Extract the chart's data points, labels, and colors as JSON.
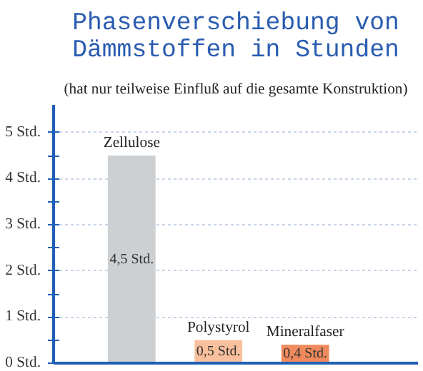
{
  "chart_data": {
    "type": "bar",
    "title": "Phasenverschiebung von Dämmstoffen in Stunden",
    "subtitle": "(hat nur teilweise Einfluß auf die gesamte Konstruktion)",
    "categories": [
      "Zellulose",
      "Polystyrol",
      "Mineralfaser"
    ],
    "values": [
      4.5,
      0.5,
      0.4
    ],
    "colors": [
      "#cdd0d3",
      "#f9c09e",
      "#f08a5c"
    ],
    "value_labels": [
      "4,5 Std.",
      "0,5 Std.",
      "0,4 Std."
    ],
    "ylim": [
      0,
      5.6
    ],
    "yticks": [
      {
        "value": 0,
        "label": "0 Std."
      },
      {
        "value": 0.5,
        "label": null
      },
      {
        "value": 1,
        "label": "1 Std."
      },
      {
        "value": 1.5,
        "label": null
      },
      {
        "value": 2,
        "label": "2 Std."
      },
      {
        "value": 2.5,
        "label": null
      },
      {
        "value": 3,
        "label": "3 Std."
      },
      {
        "value": 3.5,
        "label": null
      },
      {
        "value": 4,
        "label": "4 Std."
      },
      {
        "value": 4.5,
        "label": null
      },
      {
        "value": 5,
        "label": "5 Std."
      }
    ],
    "grid": "y",
    "tick_labels": "y"
  }
}
